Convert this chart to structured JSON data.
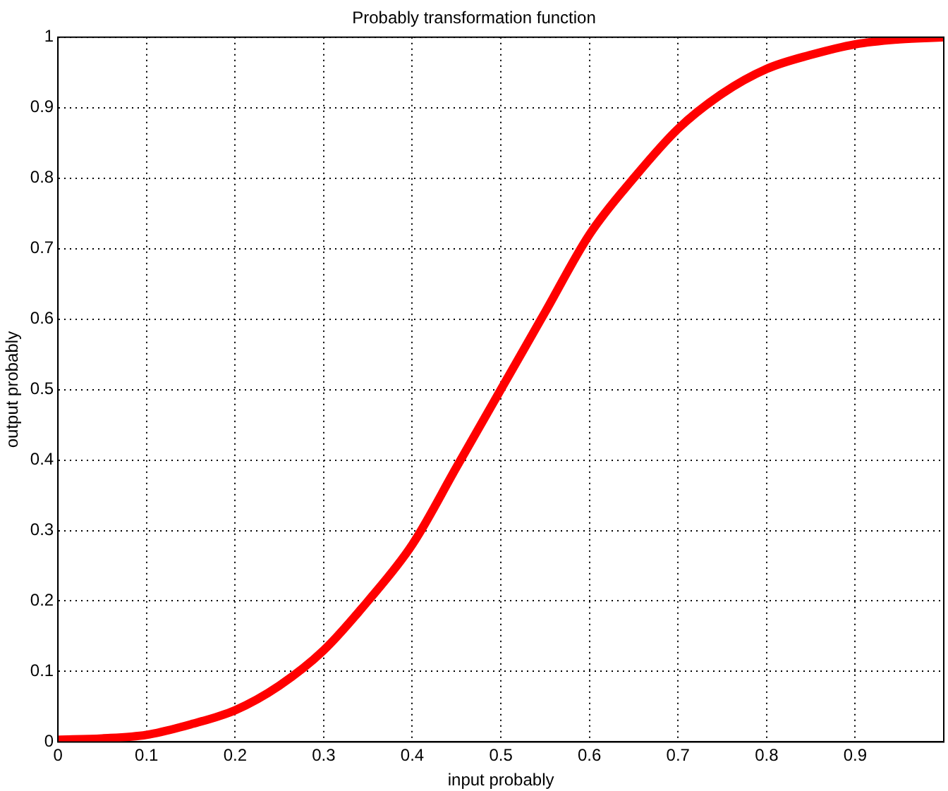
{
  "chart_data": {
    "type": "line",
    "title": "Probably transformation function",
    "xlabel": "input probably",
    "ylabel": "output probably",
    "x": [
      0,
      0.05,
      0.1,
      0.15,
      0.2,
      0.25,
      0.3,
      0.35,
      0.4,
      0.45,
      0.5,
      0.55,
      0.6,
      0.65,
      0.7,
      0.75,
      0.8,
      0.85,
      0.9,
      0.95,
      1
    ],
    "series": [
      {
        "color": "#ff0000",
        "values": [
          0.003,
          0.005,
          0.01,
          0.025,
          0.045,
          0.08,
          0.13,
          0.2,
          0.28,
          0.39,
          0.5,
          0.61,
          0.72,
          0.8,
          0.87,
          0.92,
          0.955,
          0.975,
          0.99,
          0.997,
          1
        ]
      }
    ],
    "xlim": [
      0,
      1
    ],
    "ylim": [
      0,
      1
    ],
    "xticks": [
      0,
      0.1,
      0.2,
      0.3,
      0.4,
      0.5,
      0.6,
      0.7,
      0.8,
      0.9,
      {
        "value": 1,
        "label": null
      }
    ],
    "yticks": [
      0,
      0.1,
      0.2,
      0.3,
      0.4,
      0.5,
      0.6,
      0.7,
      0.8,
      0.9,
      1
    ],
    "grid": true,
    "line_style": "solid",
    "marker": "none"
  }
}
